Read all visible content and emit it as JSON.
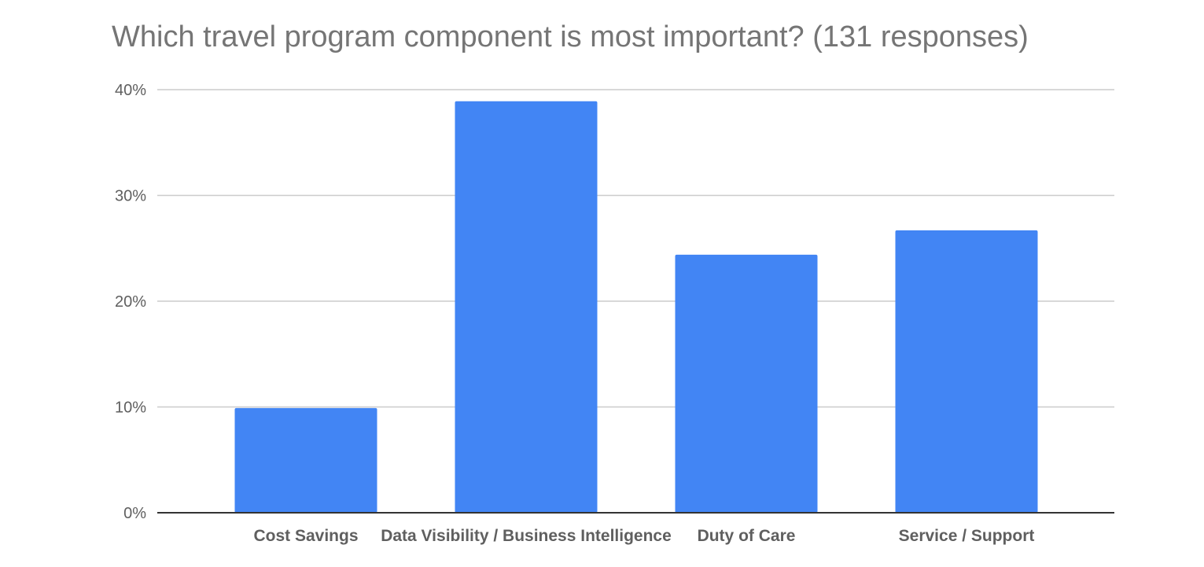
{
  "chart_data": {
    "type": "bar",
    "title": "Which travel program component is most important? (131 responses)",
    "xlabel": "",
    "ylabel": "",
    "categories": [
      "Cost Savings",
      "Data Visibility / Business Intelligence",
      "Duty of Care",
      "Service / Support"
    ],
    "values": [
      9.9,
      38.9,
      24.4,
      26.7
    ],
    "ylim": [
      0,
      40
    ],
    "yticks": [
      0,
      10,
      20,
      30,
      40
    ],
    "ytick_labels": [
      "0%",
      "10%",
      "20%",
      "30%",
      "40%"
    ],
    "grid": true,
    "legend": "none",
    "bar_color": "#4285f4",
    "grid_color": "#cccccc",
    "axis_color": "#333333"
  }
}
